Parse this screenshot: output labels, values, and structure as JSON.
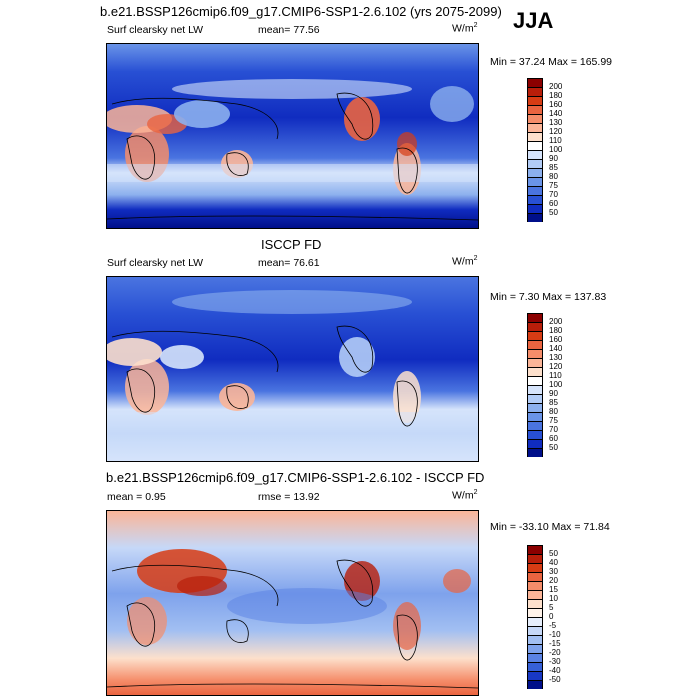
{
  "season": "JJA",
  "panels": [
    {
      "title": "b.e21.BSSP126cmip6.f09_g17.CMIP6-SSP1-2.6.102 (yrs 2075-2099)",
      "variable": "Surf clearsky net LW",
      "stat_label": "mean=",
      "stat_value": "77.56",
      "units": "W/m",
      "units_sup": "2",
      "minmax": "Min =  37.24  Max =  165.99"
    },
    {
      "title": "ISCCP FD",
      "variable": "Surf clearsky net LW",
      "stat_label": "mean=",
      "stat_value": "76.61",
      "units": "W/m",
      "units_sup": "2",
      "minmax": "Min =   7.30  Max =  137.83"
    },
    {
      "title": "b.e21.BSSP126cmip6.f09_g17.CMIP6-SSP1-2.6.102 - ISCCP FD",
      "variable": "mean =   0.95",
      "stat_label": "rmse =",
      "stat_value": "13.92",
      "units": "W/m",
      "units_sup": "2",
      "minmax": "Min = -33.10  Max =  71.84"
    }
  ],
  "colorbars": {
    "abs_levels": [
      "200",
      "180",
      "160",
      "140",
      "130",
      "120",
      "110",
      "100",
      "90",
      "85",
      "80",
      "75",
      "70",
      "60",
      "50"
    ],
    "abs_colors": [
      "#8b0000",
      "#b81e0a",
      "#d73c14",
      "#ea6440",
      "#f58d6a",
      "#fbb598",
      "#fde0cc",
      "#ffffff",
      "#d6e4fb",
      "#b2ccf6",
      "#8cb0ee",
      "#6a94e8",
      "#4a74e0",
      "#2850d4",
      "#102cc0",
      "#000f8a"
    ],
    "diff_levels": [
      "50",
      "40",
      "30",
      "20",
      "15",
      "10",
      "5",
      "0",
      "-5",
      "-10",
      "-15",
      "-20",
      "-30",
      "-40",
      "-50"
    ],
    "diff_colors": [
      "#8b0000",
      "#b81e0a",
      "#d73c14",
      "#ea6440",
      "#f58d6a",
      "#fbb598",
      "#fde0cc",
      "#fff3ea",
      "#e6eefc",
      "#c6d8f8",
      "#a2bff2",
      "#7ea2ec",
      "#5a82e4",
      "#3660d8",
      "#1838c4",
      "#000f8a"
    ]
  },
  "chart_data": [
    {
      "type": "heatmap",
      "title": "b.e21.BSSP126cmip6.f09_g17.CMIP6-SSP1-2.6.102 (yrs 2075-2099)",
      "variable": "Surf clearsky net LW",
      "mean": 77.56,
      "min": 37.24,
      "max": 165.99,
      "units": "W/m2",
      "contour_levels": [
        50,
        60,
        70,
        75,
        80,
        85,
        90,
        100,
        110,
        120,
        130,
        140,
        160,
        180,
        200
      ]
    },
    {
      "type": "heatmap",
      "title": "ISCCP FD",
      "variable": "Surf clearsky net LW",
      "mean": 76.61,
      "min": 7.3,
      "max": 137.83,
      "units": "W/m2",
      "contour_levels": [
        50,
        60,
        70,
        75,
        80,
        85,
        90,
        100,
        110,
        120,
        130,
        140,
        160,
        180,
        200
      ]
    },
    {
      "type": "heatmap",
      "title": "b.e21.BSSP126cmip6.f09_g17.CMIP6-SSP1-2.6.102 - ISCCP FD",
      "mean": 0.95,
      "rmse": 13.92,
      "min": -33.1,
      "max": 71.84,
      "units": "W/m2",
      "contour_levels": [
        -50,
        -40,
        -30,
        -20,
        -15,
        -10,
        -5,
        0,
        5,
        10,
        15,
        20,
        30,
        40,
        50
      ]
    }
  ]
}
